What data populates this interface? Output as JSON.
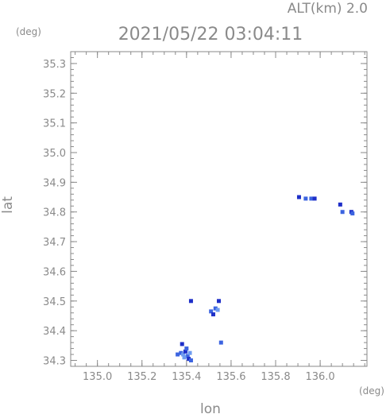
{
  "header": {
    "altitude_label": "ALT(km) 2.0",
    "timestamp": "2021/05/22 03:04:11",
    "lat_unit": "(deg)",
    "lon_unit": "(deg)"
  },
  "chart_data": {
    "type": "scatter",
    "title": "2021/05/22 03:04:11",
    "subtitle": "ALT(km) 2.0",
    "xlabel": "lon",
    "ylabel": "lat",
    "xlim": [
      134.88,
      136.21
    ],
    "ylim": [
      34.28,
      35.34
    ],
    "grid": false,
    "x_ticks": [
      135.0,
      135.2,
      135.4,
      135.6,
      135.8,
      136.0
    ],
    "x_tick_labels": [
      "135.0",
      "135.2",
      "135.4",
      "135.6",
      "135.8",
      "136.0"
    ],
    "y_ticks": [
      34.3,
      34.4,
      34.5,
      34.6,
      34.7,
      34.8,
      34.9,
      35.0,
      35.1,
      35.2,
      35.3
    ],
    "y_tick_labels": [
      "34.3",
      "34.4",
      "34.5",
      "34.6",
      "34.7",
      "34.8",
      "34.9",
      "35.0",
      "35.1",
      "35.2",
      "35.3"
    ],
    "colors": {
      "echo_light": "#6e9cf0",
      "echo_mid": "#3c64e0",
      "echo_dark": "#1e2fc8",
      "axis": "#8a8a8a"
    },
    "echo_patches": [
      {
        "lon": 135.375,
        "lat": 34.325,
        "intensity": "mid"
      },
      {
        "lon": 135.385,
        "lat": 34.32,
        "intensity": "light"
      },
      {
        "lon": 135.395,
        "lat": 34.33,
        "intensity": "dark"
      },
      {
        "lon": 135.405,
        "lat": 34.315,
        "intensity": "mid"
      },
      {
        "lon": 135.41,
        "lat": 34.305,
        "intensity": "dark"
      },
      {
        "lon": 135.39,
        "lat": 34.31,
        "intensity": "light"
      },
      {
        "lon": 135.4,
        "lat": 34.34,
        "intensity": "mid"
      },
      {
        "lon": 135.38,
        "lat": 34.355,
        "intensity": "dark"
      },
      {
        "lon": 135.415,
        "lat": 34.325,
        "intensity": "light"
      },
      {
        "lon": 135.36,
        "lat": 34.32,
        "intensity": "mid"
      },
      {
        "lon": 135.42,
        "lat": 34.3,
        "intensity": "mid"
      },
      {
        "lon": 135.51,
        "lat": 34.465,
        "intensity": "mid"
      },
      {
        "lon": 135.52,
        "lat": 34.455,
        "intensity": "dark"
      },
      {
        "lon": 135.53,
        "lat": 34.475,
        "intensity": "mid"
      },
      {
        "lon": 135.545,
        "lat": 34.5,
        "intensity": "dark"
      },
      {
        "lon": 135.54,
        "lat": 34.47,
        "intensity": "light"
      },
      {
        "lon": 135.42,
        "lat": 34.5,
        "intensity": "dark"
      },
      {
        "lon": 135.555,
        "lat": 34.36,
        "intensity": "mid"
      },
      {
        "lon": 135.905,
        "lat": 34.85,
        "intensity": "dark"
      },
      {
        "lon": 135.935,
        "lat": 34.845,
        "intensity": "mid"
      },
      {
        "lon": 135.96,
        "lat": 34.845,
        "intensity": "mid"
      },
      {
        "lon": 135.975,
        "lat": 34.845,
        "intensity": "dark"
      },
      {
        "lon": 136.09,
        "lat": 34.825,
        "intensity": "dark"
      },
      {
        "lon": 136.1,
        "lat": 34.8,
        "intensity": "mid"
      },
      {
        "lon": 136.14,
        "lat": 34.8,
        "intensity": "dark"
      },
      {
        "lon": 136.145,
        "lat": 34.795,
        "intensity": "mid"
      }
    ]
  }
}
